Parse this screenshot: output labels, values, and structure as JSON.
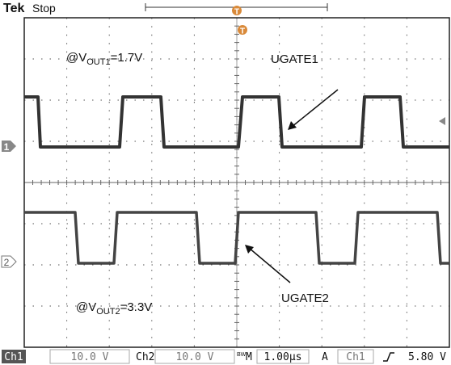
{
  "header": {
    "brand": "Tek",
    "status": "Stop",
    "trigger_marker": "T",
    "ch1_marker": "1",
    "ch2_marker": "2"
  },
  "annotations": [
    {
      "prefix": "@V",
      "sub": "OUT1",
      "suffix": "=1.7V"
    },
    {
      "text": "UGATE1"
    },
    {
      "text": "UGATE2"
    },
    {
      "prefix": "@V",
      "sub": "OUT2",
      "suffix": "=3.3V"
    }
  ],
  "status_bar": {
    "ch1": "Ch1",
    "ch1_scale": "10.0 V",
    "ch2": "Ch2",
    "ch2_scale": "10.0 V",
    "bw": "BW",
    "m": "M",
    "timebase": "1.00µs",
    "a": "A",
    "trig_source": "Ch1",
    "trig_level": "5.80 V"
  }
}
